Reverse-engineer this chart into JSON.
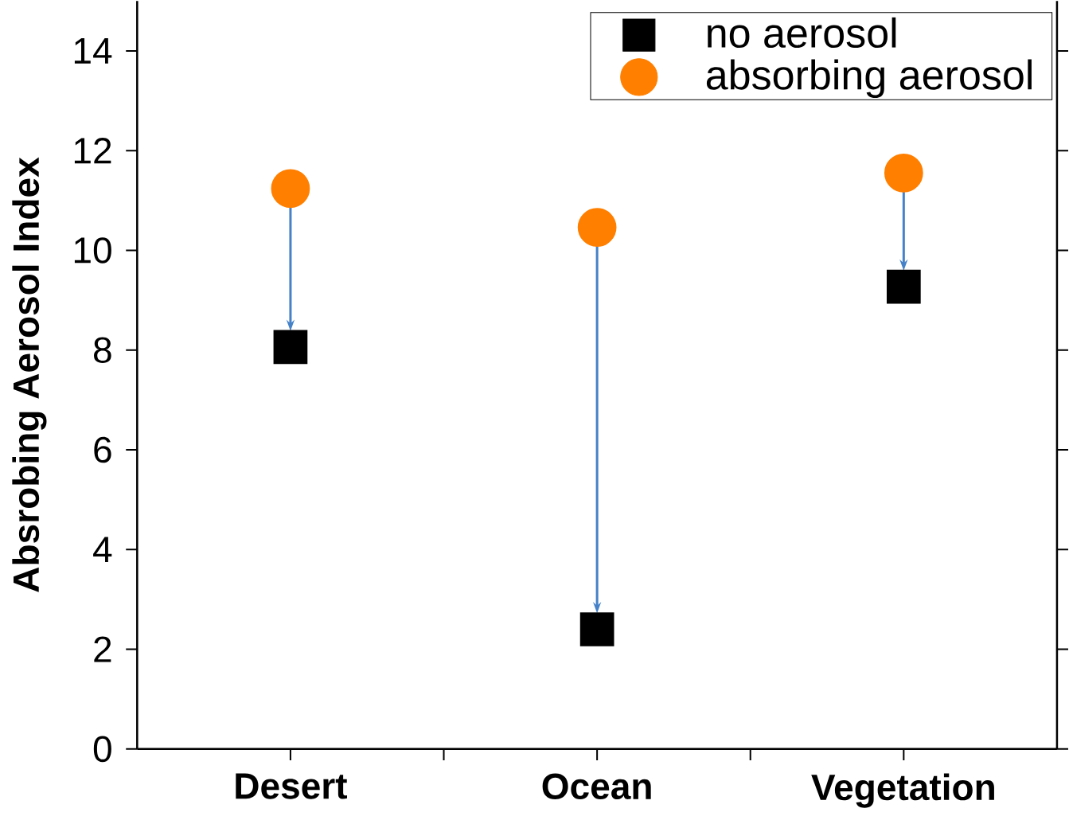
{
  "chart_data": {
    "type": "scatter",
    "ylabel": "Absrobing Aerosol Index",
    "categories": [
      "Desert",
      "Ocean",
      "Vegetation"
    ],
    "series": [
      {
        "name": "no aerosol",
        "color": "#000000",
        "marker": "square",
        "values": [
          8.06,
          2.4,
          9.27
        ]
      },
      {
        "name": "absorbing aerosol",
        "color": "#ff7f00",
        "marker": "circle",
        "values": [
          11.24,
          10.46,
          11.55
        ]
      }
    ],
    "ylim": [
      0,
      15
    ],
    "yticks": [
      0,
      2,
      4,
      6,
      8,
      10,
      12,
      14
    ],
    "legend": "top right",
    "grid": false
  }
}
